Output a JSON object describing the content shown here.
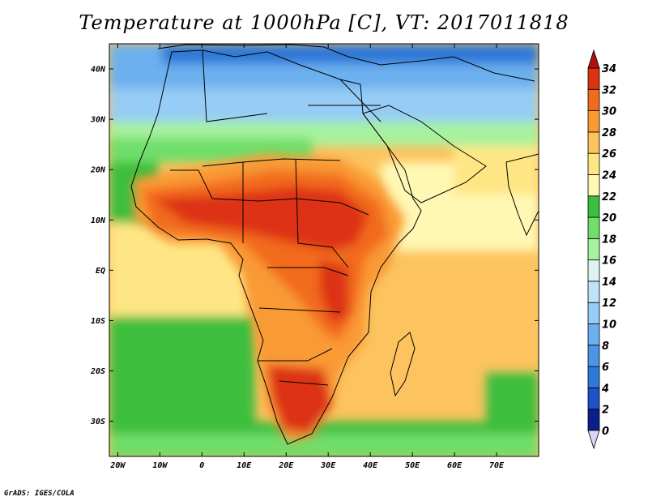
{
  "title": "Temperature at 1000hPa [C], VT: 2017011818",
  "credit": "GrADS: IGES/COLA",
  "map": {
    "lon_labels": [
      "20W",
      "10W",
      "0",
      "10E",
      "20E",
      "30E",
      "40E",
      "50E",
      "60E",
      "70E"
    ],
    "lat_labels": [
      "40N",
      "30N",
      "20N",
      "10N",
      "EQ",
      "10S",
      "20S",
      "30S"
    ],
    "lon_range": [
      -22,
      80
    ],
    "lat_range": [
      -37,
      45
    ]
  },
  "colorbar": {
    "labels": [
      "0",
      "2",
      "4",
      "6",
      "8",
      "10",
      "12",
      "14",
      "16",
      "18",
      "20",
      "22",
      "24",
      "26",
      "28",
      "30",
      "32",
      "34"
    ],
    "colors": [
      "#0a1f8c",
      "#1e50c8",
      "#2e78d8",
      "#4a96e6",
      "#6cb0ef",
      "#96ccf5",
      "#bfe2f8",
      "#dcf4f0",
      "#a6f29e",
      "#70de6a",
      "#3cbe3e",
      "#fff8b4",
      "#ffe685",
      "#fcc35e",
      "#f99a35",
      "#f26a1e",
      "#dd3212"
    ],
    "under_color": "#ddd4f4",
    "over_color": "#b01010"
  }
}
